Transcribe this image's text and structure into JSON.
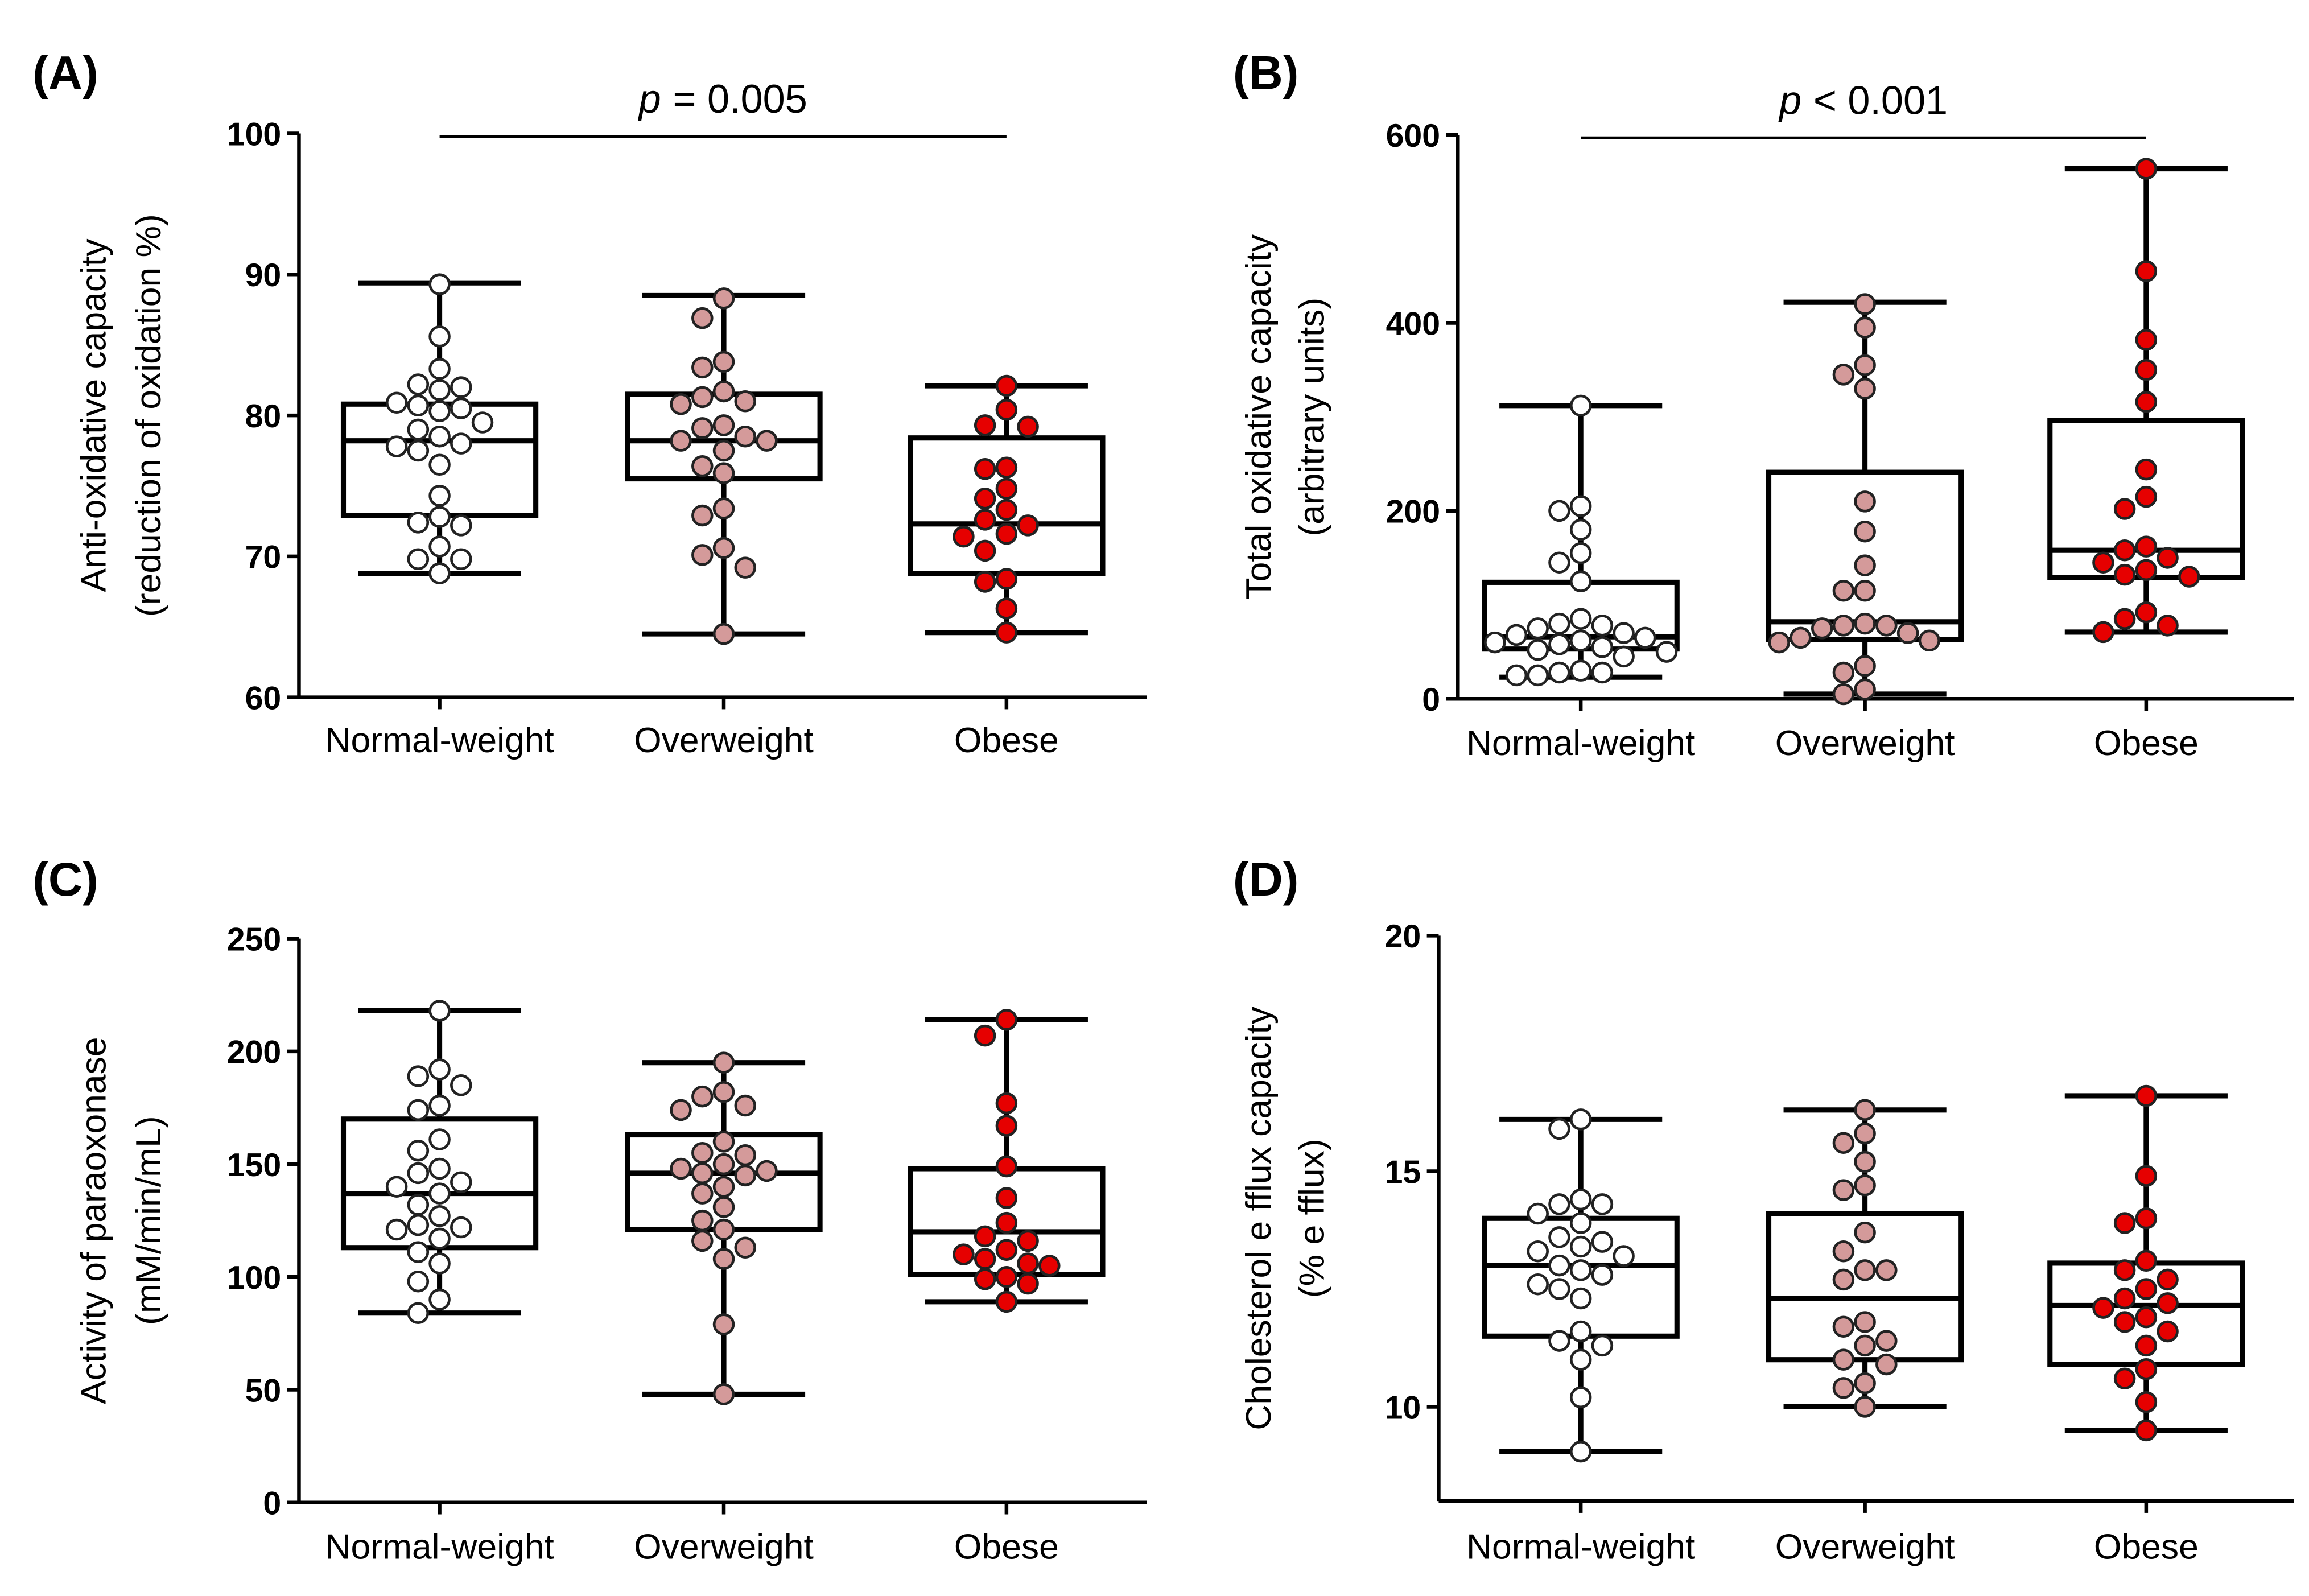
{
  "colors": {
    "Normal-weight": "#ffffff",
    "Overweight": "#d49a9a",
    "Obese": "#e60000",
    "stroke": "#000000"
  },
  "chart_data": [
    {
      "type": "box",
      "panel": "(A)",
      "ylabel": [
        "Anti-oxidative capacity",
        "(reduction of oxidation %)"
      ],
      "ylim": [
        60,
        100
      ],
      "yticks": [
        60,
        70,
        80,
        90,
        100
      ],
      "categories": [
        "Normal-weight",
        "Overweight",
        "Obese"
      ],
      "significance": {
        "p": "p",
        "text": "= 0.005",
        "from": 0,
        "to": 2
      },
      "series": [
        {
          "name": "Normal-weight",
          "min": 68.8,
          "q1": 72.9,
          "median": 78.2,
          "q3": 80.8,
          "max": 89.4,
          "points": [
            89.3,
            85.6,
            83.3,
            82.2,
            82.0,
            81.8,
            80.9,
            80.7,
            80.5,
            80.3,
            79.5,
            79.0,
            78.5,
            78.0,
            77.8,
            77.5,
            76.5,
            74.3,
            72.8,
            72.4,
            72.2,
            70.7,
            69.8,
            69.8,
            68.8
          ]
        },
        {
          "name": "Overweight",
          "min": 64.5,
          "q1": 75.5,
          "median": 78.2,
          "q3": 81.5,
          "max": 88.5,
          "points": [
            88.3,
            86.9,
            83.8,
            83.4,
            81.7,
            81.3,
            81.0,
            80.8,
            79.3,
            79.1,
            78.5,
            78.2,
            78.2,
            77.5,
            76.4,
            75.9,
            73.4,
            72.9,
            70.6,
            70.1,
            69.2,
            64.5
          ]
        },
        {
          "name": "Obese",
          "min": 64.6,
          "q1": 68.8,
          "median": 72.3,
          "q3": 78.4,
          "max": 82.1,
          "points": [
            82.1,
            80.4,
            79.3,
            79.2,
            76.3,
            76.2,
            74.8,
            74.1,
            73.3,
            72.6,
            72.2,
            71.6,
            71.4,
            70.4,
            68.4,
            68.2,
            66.3,
            64.6
          ]
        }
      ]
    },
    {
      "type": "box",
      "panel": "(B)",
      "ylabel": [
        "Total oxidative capacity",
        "(arbitrary units)"
      ],
      "ylim": [
        0,
        600
      ],
      "yticks": [
        0,
        200,
        400,
        600
      ],
      "categories": [
        "Normal-weight",
        "Overweight",
        "Obese"
      ],
      "significance": {
        "p": "p",
        "text": "< 0.001",
        "from": 0,
        "to": 2
      },
      "series": [
        {
          "name": "Normal-weight",
          "min": 23,
          "q1": 53,
          "median": 66,
          "q3": 124,
          "max": 312,
          "points": [
            312,
            205,
            200,
            180,
            155,
            145,
            125,
            85,
            80,
            78,
            75,
            70,
            68,
            65,
            62,
            60,
            58,
            55,
            52,
            50,
            45,
            30,
            28,
            28,
            25,
            25
          ]
        },
        {
          "name": "Overweight",
          "min": 5,
          "q1": 63,
          "median": 82,
          "q3": 241,
          "max": 422,
          "points": [
            420,
            395,
            355,
            345,
            330,
            210,
            178,
            142,
            115,
            115,
            80,
            78,
            78,
            75,
            70,
            65,
            62,
            60,
            35,
            28,
            10,
            5
          ]
        },
        {
          "name": "Obese",
          "min": 71,
          "q1": 129,
          "median": 158,
          "q3": 296,
          "max": 564,
          "points": [
            564,
            455,
            382,
            350,
            316,
            244,
            215,
            202,
            162,
            158,
            150,
            145,
            137,
            132,
            130,
            92,
            85,
            78,
            71
          ]
        }
      ]
    },
    {
      "type": "box",
      "panel": "(C)",
      "ylabel": [
        "Activity of paraoxonase",
        "(mM/min/mL)"
      ],
      "ylim": [
        0,
        250
      ],
      "yticks": [
        0,
        50,
        100,
        150,
        200,
        250
      ],
      "categories": [
        "Normal-weight",
        "Overweight",
        "Obese"
      ],
      "series": [
        {
          "name": "Normal-weight",
          "min": 84,
          "q1": 113,
          "median": 137,
          "q3": 170,
          "max": 218,
          "points": [
            218,
            192,
            189,
            185,
            176,
            174,
            161,
            156,
            148,
            146,
            142,
            140,
            137,
            132,
            127,
            123,
            122,
            121,
            117,
            111,
            106,
            98,
            90,
            84
          ]
        },
        {
          "name": "Overweight",
          "min": 48,
          "q1": 121,
          "median": 146,
          "q3": 163,
          "max": 195,
          "points": [
            195,
            182,
            180,
            176,
            174,
            160,
            155,
            154,
            150,
            148,
            147,
            146,
            145,
            140,
            137,
            131,
            125,
            121,
            116,
            113,
            108,
            79,
            48
          ]
        },
        {
          "name": "Obese",
          "min": 89,
          "q1": 101,
          "median": 120,
          "q3": 148,
          "max": 214,
          "points": [
            214,
            207,
            177,
            167,
            149,
            135,
            124,
            118,
            116,
            112,
            110,
            108,
            106,
            105,
            100,
            99,
            97,
            89
          ]
        }
      ]
    },
    {
      "type": "box",
      "panel": "(D)",
      "ylabel": [
        "Cholesterol e fflux capacity",
        "(% e fflux)"
      ],
      "ylim": [
        8,
        20
      ],
      "yticks": [
        10,
        15,
        20
      ],
      "categories": [
        "Normal-weight",
        "Overweight",
        "Obese"
      ],
      "series": [
        {
          "name": "Normal-weight",
          "min": 9.05,
          "q1": 11.5,
          "median": 13.0,
          "q3": 14.0,
          "max": 16.1,
          "points": [
            16.1,
            15.9,
            14.4,
            14.3,
            14.3,
            14.1,
            13.9,
            13.6,
            13.5,
            13.4,
            13.3,
            13.2,
            13.0,
            12.9,
            12.8,
            12.6,
            12.5,
            12.3,
            11.6,
            11.4,
            11.3,
            11.0,
            10.2,
            9.05
          ]
        },
        {
          "name": "Overweight",
          "min": 10.0,
          "q1": 11.0,
          "median": 12.3,
          "q3": 14.1,
          "max": 16.3,
          "points": [
            16.3,
            15.8,
            15.6,
            15.2,
            14.7,
            14.6,
            13.7,
            13.3,
            12.9,
            12.9,
            12.7,
            11.8,
            11.7,
            11.4,
            11.3,
            11.0,
            10.9,
            10.5,
            10.4,
            10.0
          ]
        },
        {
          "name": "Obese",
          "min": 9.5,
          "q1": 10.9,
          "median": 12.15,
          "q3": 13.05,
          "max": 16.6,
          "points": [
            16.6,
            14.9,
            14.0,
            13.9,
            13.1,
            12.9,
            12.7,
            12.5,
            12.3,
            12.2,
            12.1,
            11.9,
            11.8,
            11.6,
            11.3,
            10.8,
            10.6,
            10.1,
            9.5
          ]
        }
      ]
    }
  ]
}
